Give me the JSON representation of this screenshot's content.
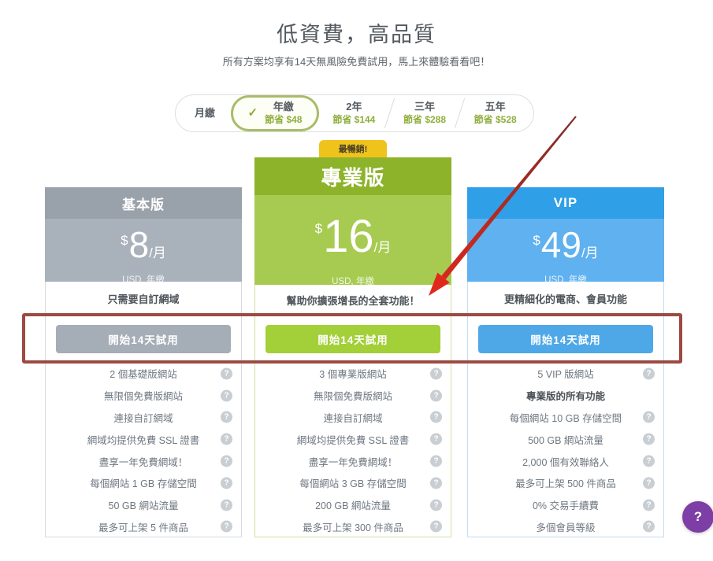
{
  "page": {
    "title": "低資費，高品質",
    "subtitle": "所有方案均享有14天無風險免費試用，馬上來體驗看看吧！"
  },
  "billing": {
    "options": [
      {
        "label": "月繳",
        "sub": "",
        "selected": false
      },
      {
        "label": "年繳",
        "sub": "節省 $48",
        "selected": true
      },
      {
        "label": "2年",
        "sub": "節省 $144",
        "selected": false
      },
      {
        "label": "三年",
        "sub": "節省 $288",
        "selected": false
      },
      {
        "label": "五年",
        "sub": "節省 $528",
        "selected": false
      }
    ],
    "check_icon": "✓",
    "accent_color": "#8fae3e"
  },
  "plans": [
    {
      "name": "基本版",
      "badge": "",
      "featured": false,
      "currency": "$",
      "price": "8",
      "per": "/月",
      "billing_note": "USD, 年繳",
      "description": "只需要自訂網域",
      "cta": "開始14天試用",
      "colors": {
        "header": "#99a1aa",
        "price_bg": "#a9b1bb",
        "button": "#a5adb7",
        "border": "#d8dade"
      },
      "features": [
        {
          "text": "2 個基礎版網站",
          "help": true,
          "bold": false
        },
        {
          "text": "無限個免費版網站",
          "help": true,
          "bold": false
        },
        {
          "text": "連接自訂網域",
          "help": true,
          "bold": false
        },
        {
          "text": "網域均提供免費 SSL 證書",
          "help": true,
          "bold": false
        },
        {
          "text": "盡享一年免費網域！",
          "help": true,
          "bold": false
        },
        {
          "text": "每個網站 1 GB 存儲空間",
          "help": true,
          "bold": false
        },
        {
          "text": "50 GB 網站流量",
          "help": true,
          "bold": false
        },
        {
          "text": "最多可上架 5 件商品",
          "help": true,
          "bold": false
        }
      ]
    },
    {
      "name": "專業版",
      "badge": "最暢銷!",
      "featured": true,
      "currency": "$",
      "price": "16",
      "per": "/月",
      "billing_note": "USD, 年繳",
      "description": "幫助你擴張增長的全套功能！",
      "cta": "開始14天試用",
      "colors": {
        "header": "#8db32a",
        "price_bg": "#a6cb50",
        "button": "#a3cf39",
        "border": "#d6dfa2"
      },
      "features": [
        {
          "text": "3 個專業版網站",
          "help": true,
          "bold": false
        },
        {
          "text": "無限個免費版網站",
          "help": true,
          "bold": false
        },
        {
          "text": "連接自訂網域",
          "help": true,
          "bold": false
        },
        {
          "text": "網域均提供免費 SSL 證書",
          "help": true,
          "bold": false
        },
        {
          "text": "盡享一年免費網域！",
          "help": true,
          "bold": false
        },
        {
          "text": "每個網站 3 GB 存儲空間",
          "help": true,
          "bold": false
        },
        {
          "text": "200 GB 網站流量",
          "help": true,
          "bold": false
        },
        {
          "text": "最多可上架 300 件商品",
          "help": true,
          "bold": false
        }
      ]
    },
    {
      "name": "VIP",
      "badge": "",
      "featured": false,
      "currency": "$",
      "price": "49",
      "per": "/月",
      "billing_note": "USD, 年繳",
      "description": "更精細化的電商、會員功能",
      "cta": "開始14天試用",
      "colors": {
        "header": "#2f9fe8",
        "price_bg": "#5fb1ef",
        "button": "#4ea8e7",
        "border": "#c3dcf2"
      },
      "features": [
        {
          "text": "5 VIP 版網站",
          "help": true,
          "bold": false
        },
        {
          "text": "專業版的所有功能",
          "help": false,
          "bold": true
        },
        {
          "text": "每個網站 10 GB 存儲空間",
          "help": true,
          "bold": false
        },
        {
          "text": "500 GB 網站流量",
          "help": true,
          "bold": false
        },
        {
          "text": "2,000 個有效聯絡人",
          "help": true,
          "bold": false
        },
        {
          "text": "最多可上架 500 件商品",
          "help": true,
          "bold": false
        },
        {
          "text": "0% 交易手續費",
          "help": true,
          "bold": false
        },
        {
          "text": "多個會員等級",
          "help": true,
          "bold": false
        }
      ]
    }
  ],
  "annotations": {
    "rect_color": "#9c4a42",
    "arrow_color_head": "#e0281c",
    "arrow_color_tail": "#7e2d26"
  },
  "help_button": {
    "label": "?",
    "color": "#7d3ea6"
  },
  "icons": {
    "help": "?"
  }
}
